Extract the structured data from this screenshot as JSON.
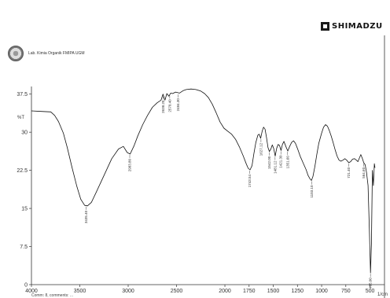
{
  "header": {
    "brand_name": "SHIMADZU",
    "lab_text": "Lab. Kimia Organik FMIPA UGM"
  },
  "footer": {
    "text": "Comm: 8, comments: ..."
  },
  "chart_data": {
    "type": "line",
    "title": "",
    "xlabel": "1/cm",
    "ylabel": "%T",
    "xlim": [
      4000,
      350
    ],
    "ylim": [
      0,
      39
    ],
    "x_ticks": [
      4000,
      3500,
      3000,
      2500,
      2000,
      1750,
      1500,
      1250,
      1000,
      750,
      500
    ],
    "y_ticks": [
      {
        "value": 0,
        "label": "0"
      },
      {
        "value": 7.5,
        "label": "7.5"
      },
      {
        "value": 15,
        "label": "15"
      },
      {
        "value": 22.5,
        "label": "22.5"
      },
      {
        "value": 30,
        "label": "30"
      },
      {
        "value": 37.5,
        "label": "37.5"
      }
    ],
    "grid": false,
    "series": [
      {
        "points": [
          [
            4000,
            34.2
          ],
          [
            3900,
            34.1
          ],
          [
            3800,
            34.0
          ],
          [
            3760,
            33.3
          ],
          [
            3720,
            32.1
          ],
          [
            3670,
            29.8
          ],
          [
            3630,
            27.0
          ],
          [
            3580,
            23.0
          ],
          [
            3530,
            19.3
          ],
          [
            3490,
            16.8
          ],
          [
            3450,
            15.6
          ],
          [
            3420,
            15.5
          ],
          [
            3380,
            16.2
          ],
          [
            3330,
            18.2
          ],
          [
            3250,
            21.5
          ],
          [
            3170,
            24.8
          ],
          [
            3100,
            26.7
          ],
          [
            3050,
            27.2
          ],
          [
            3010,
            26.0
          ],
          [
            2980,
            25.7
          ],
          [
            2940,
            27.3
          ],
          [
            2900,
            29.3
          ],
          [
            2850,
            31.5
          ],
          [
            2800,
            33.3
          ],
          [
            2750,
            34.9
          ],
          [
            2700,
            35.8
          ],
          [
            2660,
            36.3
          ],
          [
            2640,
            37.5
          ],
          [
            2620,
            36.3
          ],
          [
            2600,
            37.6
          ],
          [
            2580,
            37.1
          ],
          [
            2560,
            37.7
          ],
          [
            2540,
            37.6
          ],
          [
            2510,
            37.9
          ],
          [
            2470,
            37.7
          ],
          [
            2430,
            38.2
          ],
          [
            2400,
            38.4
          ],
          [
            2350,
            38.5
          ],
          [
            2300,
            38.4
          ],
          [
            2250,
            38.1
          ],
          [
            2210,
            37.6
          ],
          [
            2170,
            36.8
          ],
          [
            2130,
            35.5
          ],
          [
            2090,
            33.8
          ],
          [
            2050,
            32.0
          ],
          [
            2010,
            30.8
          ],
          [
            1970,
            30.2
          ],
          [
            1930,
            29.6
          ],
          [
            1890,
            28.6
          ],
          [
            1850,
            27.1
          ],
          [
            1810,
            25.3
          ],
          [
            1780,
            23.8
          ],
          [
            1760,
            22.9
          ],
          [
            1740,
            22.6
          ],
          [
            1720,
            23.4
          ],
          [
            1700,
            25.8
          ],
          [
            1680,
            28.0
          ],
          [
            1660,
            29.4
          ],
          [
            1645,
            29.6
          ],
          [
            1630,
            28.8
          ],
          [
            1615,
            30.2
          ],
          [
            1600,
            31.0
          ],
          [
            1585,
            30.6
          ],
          [
            1570,
            29.0
          ],
          [
            1555,
            27.0
          ],
          [
            1540,
            26.2
          ],
          [
            1525,
            26.7
          ],
          [
            1510,
            27.5
          ],
          [
            1495,
            26.8
          ],
          [
            1480,
            25.3
          ],
          [
            1465,
            26.8
          ],
          [
            1450,
            27.6
          ],
          [
            1435,
            27.4
          ],
          [
            1420,
            26.4
          ],
          [
            1405,
            27.6
          ],
          [
            1390,
            28.2
          ],
          [
            1370,
            27.2
          ],
          [
            1350,
            26.3
          ],
          [
            1330,
            27.2
          ],
          [
            1310,
            28.0
          ],
          [
            1290,
            28.3
          ],
          [
            1270,
            27.8
          ],
          [
            1250,
            26.8
          ],
          [
            1220,
            25.2
          ],
          [
            1190,
            23.9
          ],
          [
            1160,
            22.6
          ],
          [
            1140,
            21.5
          ],
          [
            1120,
            20.8
          ],
          [
            1105,
            20.5
          ],
          [
            1090,
            21.3
          ],
          [
            1070,
            23.2
          ],
          [
            1050,
            25.6
          ],
          [
            1030,
            27.8
          ],
          [
            1000,
            29.8
          ],
          [
            980,
            31.0
          ],
          [
            960,
            31.5
          ],
          [
            940,
            31.2
          ],
          [
            920,
            30.3
          ],
          [
            900,
            29.2
          ],
          [
            880,
            27.9
          ],
          [
            860,
            26.5
          ],
          [
            840,
            25.3
          ],
          [
            820,
            24.5
          ],
          [
            800,
            24.3
          ],
          [
            780,
            24.5
          ],
          [
            760,
            24.8
          ],
          [
            740,
            24.5
          ],
          [
            720,
            24.0
          ],
          [
            700,
            24.2
          ],
          [
            680,
            24.7
          ],
          [
            660,
            24.8
          ],
          [
            640,
            24.5
          ],
          [
            625,
            24.2
          ],
          [
            610,
            24.9
          ],
          [
            595,
            25.6
          ],
          [
            580,
            24.9
          ],
          [
            565,
            24.0
          ],
          [
            550,
            23.6
          ],
          [
            535,
            22.0
          ],
          [
            520,
            19.5
          ],
          [
            505,
            10.0
          ],
          [
            495,
            2.3
          ],
          [
            485,
            8.0
          ],
          [
            475,
            22.5
          ],
          [
            465,
            19.5
          ],
          [
            455,
            23.8
          ],
          [
            448,
            23.0
          ]
        ]
      }
    ],
    "annotations": [
      {
        "x": 3435.4,
        "y": 15.5,
        "label": "3435.40"
      },
      {
        "x": 2983.8,
        "y": 25.7,
        "label": "2983.80"
      },
      {
        "x": 2638.2,
        "y": 37.2,
        "label": "2638.20"
      },
      {
        "x": 2570.4,
        "y": 37.4,
        "label": "2570.40"
      },
      {
        "x": 2484.3,
        "y": 37.6,
        "label": "2484.30"
      },
      {
        "x": 1743.5,
        "y": 22.6,
        "label": "1743.54"
      },
      {
        "x": 1627.1,
        "y": 28.8,
        "label": "1627.12"
      },
      {
        "x": 1542.0,
        "y": 26.2,
        "label": "1542.00"
      },
      {
        "x": 1481.1,
        "y": 25.3,
        "label": "1481.12"
      },
      {
        "x": 1421.3,
        "y": 26.4,
        "label": "1421.30"
      },
      {
        "x": 1351.6,
        "y": 26.3,
        "label": "1351.60"
      },
      {
        "x": 1103.1,
        "y": 20.5,
        "label": "1103.10"
      },
      {
        "x": 721.4,
        "y": 24.0,
        "label": "721.40"
      },
      {
        "x": 564.6,
        "y": 24.0,
        "label": "564.60"
      },
      {
        "x": 495.0,
        "y": 2.3,
        "label": "495.00"
      }
    ]
  }
}
